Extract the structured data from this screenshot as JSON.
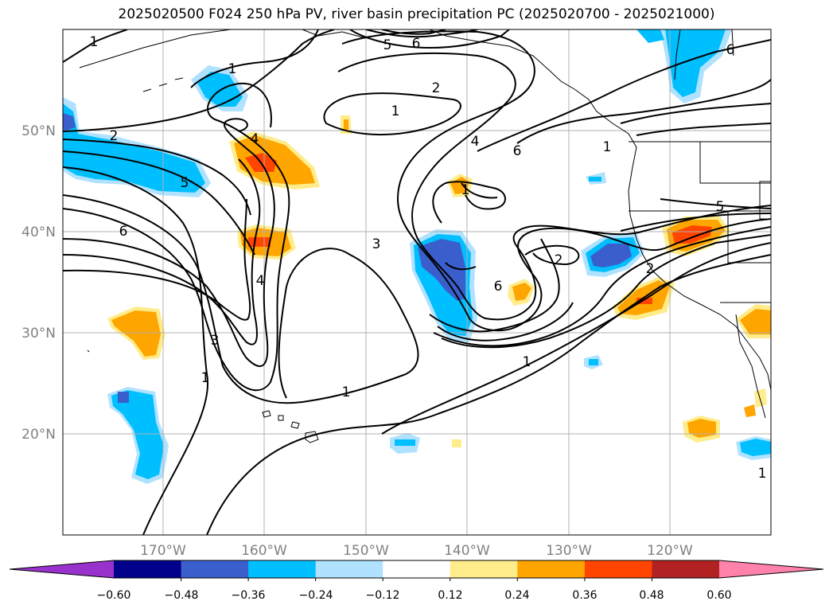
{
  "title": "2025020500 F024 250 hPa PV, river basin precipitation PC (2025020700 - 2025021000)",
  "map": {
    "lat_ticks": [
      "50°N",
      "40°N",
      "30°N",
      "20°N"
    ],
    "lon_ticks": [
      "170°W",
      "160°W",
      "150°W",
      "140°W",
      "130°W",
      "120°W"
    ],
    "grid": true,
    "projection": "lat-lon",
    "extent": {
      "lon": [
        -180,
        -110
      ],
      "lat": [
        10,
        60
      ]
    },
    "contour_labels": [
      {
        "text": "1"
      },
      {
        "text": "5"
      },
      {
        "text": "6"
      },
      {
        "text": "1"
      },
      {
        "text": "2"
      },
      {
        "text": "1"
      },
      {
        "text": "6"
      },
      {
        "text": "2"
      },
      {
        "text": "4"
      },
      {
        "text": "4"
      },
      {
        "text": "6"
      },
      {
        "text": "5"
      },
      {
        "text": "1"
      },
      {
        "text": "1"
      },
      {
        "text": "6"
      },
      {
        "text": "5"
      },
      {
        "text": "3"
      },
      {
        "text": "2"
      },
      {
        "text": "2"
      },
      {
        "text": "4"
      },
      {
        "text": "6"
      },
      {
        "text": "3"
      },
      {
        "text": "1"
      },
      {
        "text": "1"
      },
      {
        "text": "1"
      },
      {
        "text": "1"
      }
    ]
  },
  "colorbar": {
    "ticks": [
      "−0.60",
      "−0.48",
      "−0.36",
      "−0.24",
      "−0.12",
      "0.12",
      "0.24",
      "0.36",
      "0.48",
      "0.60"
    ],
    "colors": [
      "#9932cc",
      "#00008b",
      "#3a5fcd",
      "#00bfff",
      "#b0e2ff",
      "#ffffff",
      "#ffec8b",
      "#ffa500",
      "#ff4500",
      "#b22222",
      "#ff82ab"
    ],
    "extend": "both"
  },
  "palette": {
    "neg_light": "#b0e2ff",
    "neg_mid": "#00bfff",
    "neg_strong": "#3a5fcd",
    "neg_max": "#00008b",
    "pos_light": "#ffec8b",
    "pos_mid": "#ffa500",
    "pos_strong": "#ff4500"
  }
}
